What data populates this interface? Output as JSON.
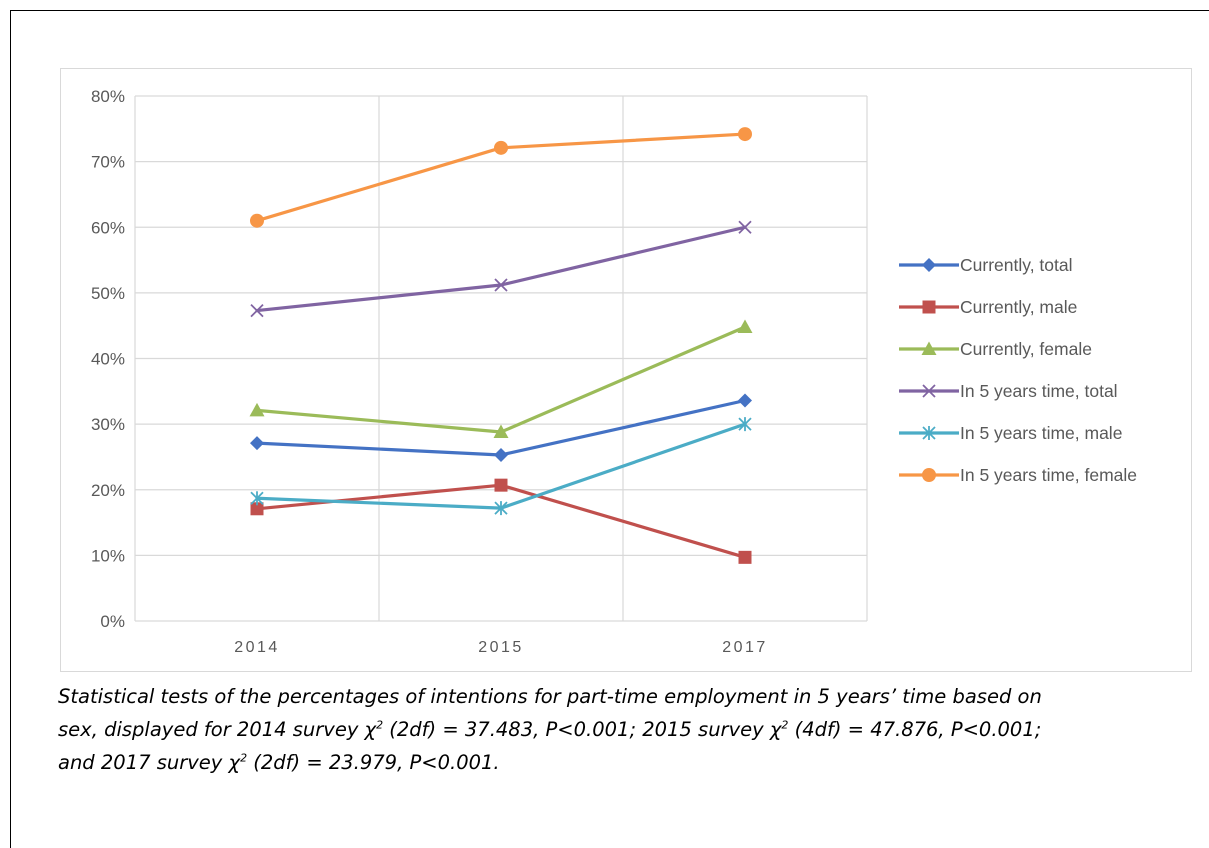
{
  "chart_data": {
    "type": "line",
    "x": [
      "2014",
      "2015",
      "2017"
    ],
    "ylim": [
      0,
      0.8
    ],
    "yticks": [
      "0%",
      "10%",
      "20%",
      "30%",
      "40%",
      "50%",
      "60%",
      "70%",
      "80%"
    ],
    "grid": true,
    "legend_position": "right",
    "series": [
      {
        "name": "Currently, total",
        "values": [
          0.271,
          0.253,
          0.336
        ],
        "color": "#4472c4",
        "marker": "diamond"
      },
      {
        "name": "Currently, male",
        "values": [
          0.171,
          0.207,
          0.097
        ],
        "color": "#c0504d",
        "marker": "square"
      },
      {
        "name": "Currently, female",
        "values": [
          0.321,
          0.288,
          0.448
        ],
        "color": "#9bbb59",
        "marker": "triangle"
      },
      {
        "name": "In 5 years time, total",
        "values": [
          0.473,
          0.512,
          0.6
        ],
        "color": "#8064a2",
        "marker": "x"
      },
      {
        "name": "In 5 years time, male",
        "values": [
          0.187,
          0.172,
          0.3
        ],
        "color": "#4bacc6",
        "marker": "star"
      },
      {
        "name": "In 5 years time, female",
        "values": [
          0.61,
          0.721,
          0.742
        ],
        "color": "#f79646",
        "marker": "circle"
      }
    ]
  },
  "caption": {
    "line1": "Statistical tests of the percentages of  intentions for part-time employment in 5 years’ time based on",
    "line2_a": "sex, displayed for 2014 survey χ",
    "line2_b": " (2df) = 37.483, P<0.001; 2015 survey χ",
    "line2_c": " (4df) = 47.876, P<0.001;",
    "line3_a": "and 2017 survey χ",
    "line3_b": " (2df) = 23.979, P<0.001.",
    "sup": "2"
  }
}
